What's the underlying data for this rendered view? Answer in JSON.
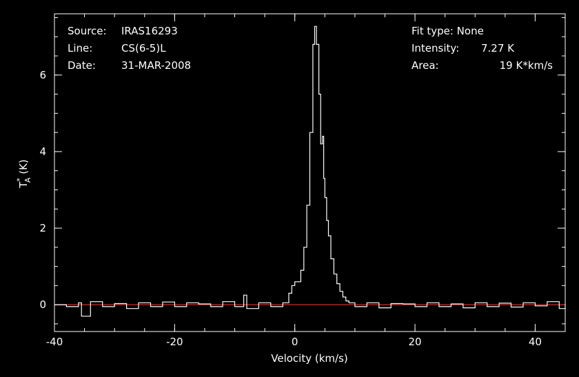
{
  "header": {
    "source_label": "Source:",
    "source_value": "IRAS16293",
    "line_label": "Line:",
    "line_value": "CS(6-5)L",
    "date_label": "Date:",
    "date_value": "31-MAR-2008",
    "fit_type_text": "Fit type: None",
    "intensity_label": "Intensity:",
    "intensity_value": "7.27 K",
    "area_label": "Area:",
    "area_value": "19 K*km/s"
  },
  "colors": {
    "background": "#000000",
    "axes": "#ffffff",
    "spectrum": "#ffffff",
    "baseline": "#d01818"
  },
  "chart_data": {
    "type": "line",
    "xlabel": "Velocity (km/s)",
    "ylabel_main": "T",
    "ylabel_sup": "*",
    "ylabel_sub": "A",
    "ylabel_unit": " (K)",
    "xlim": [
      -40,
      45
    ],
    "ylim": [
      -0.7,
      7.6
    ],
    "xticks": [
      -40,
      -20,
      0,
      20,
      40
    ],
    "xtick_labels": [
      "-40",
      "-20",
      "0",
      "20",
      "40"
    ],
    "yticks": [
      0,
      2,
      4,
      6
    ],
    "ytick_labels": [
      "0",
      "2",
      "4",
      "6"
    ],
    "baseline_y": 0,
    "grid": false,
    "legend": "none",
    "series": [
      {
        "x": [
          -40,
          -38,
          -36,
          -35.5,
          -34,
          -32,
          -30,
          -28,
          -26,
          -24,
          -22,
          -20,
          -18,
          -16,
          -14,
          -12,
          -10,
          -8.5,
          -8,
          -6,
          -4,
          -2,
          -1.5,
          -1,
          -0.5,
          0,
          0.5,
          1,
          1.5,
          2,
          2.5,
          3,
          3.3,
          3.6,
          4,
          4.3,
          4.6,
          4.8,
          5,
          5.3,
          5.6,
          6,
          6.5,
          7,
          7.5,
          8,
          8.5,
          9,
          10,
          12,
          14,
          16,
          18,
          20,
          22,
          24,
          26,
          28,
          30,
          32,
          34,
          36,
          38,
          40,
          42,
          44,
          45
        ],
        "y": [
          0,
          -0.05,
          0.05,
          -0.3,
          0.08,
          -0.05,
          0.03,
          -0.1,
          0.05,
          -0.05,
          0.07,
          -0.05,
          0.05,
          0.02,
          -0.05,
          0.08,
          -0.05,
          0.25,
          -0.1,
          0.05,
          -0.05,
          0.05,
          0.05,
          0.3,
          0.5,
          0.6,
          0.6,
          0.9,
          1.5,
          2.6,
          4.5,
          6.8,
          7.27,
          6.8,
          5.5,
          4.2,
          4.4,
          3.3,
          2.8,
          2.2,
          1.8,
          1.2,
          0.8,
          0.55,
          0.35,
          0.2,
          0.1,
          0.05,
          -0.05,
          0.05,
          -0.08,
          0.03,
          0.02,
          -0.05,
          0.05,
          -0.05,
          0.02,
          -0.08,
          0.05,
          -0.05,
          0.04,
          -0.06,
          0.05,
          -0.03,
          0.08,
          -0.1,
          0.02
        ]
      }
    ]
  }
}
